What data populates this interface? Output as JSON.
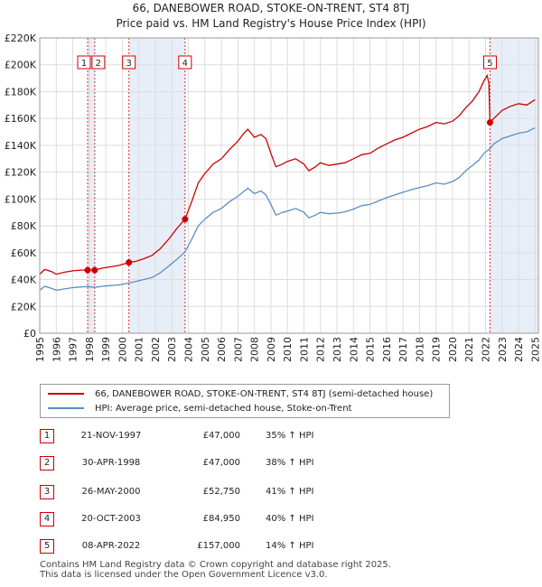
{
  "title_line1": "66, DANEBOWER ROAD, STOKE-ON-TRENT, ST4 8TJ",
  "title_line2": "Price paid vs. HM Land Registry's House Price Index (HPI)",
  "colors": {
    "property": "#cc0000",
    "hpi": "#5b8ec4",
    "grid": "#dddddd",
    "highlight": "#e8eef7"
  },
  "chart_data": {
    "type": "line",
    "x_range": [
      1995,
      2025.2
    ],
    "ylim": [
      0,
      220000
    ],
    "y_ticks": [
      {
        "value": 0,
        "label": "£0"
      },
      {
        "value": 20000,
        "label": "£20K"
      },
      {
        "value": 40000,
        "label": "£40K"
      },
      {
        "value": 60000,
        "label": "£60K"
      },
      {
        "value": 80000,
        "label": "£80K"
      },
      {
        "value": 100000,
        "label": "£100K"
      },
      {
        "value": 120000,
        "label": "£120K"
      },
      {
        "value": 140000,
        "label": "£140K"
      },
      {
        "value": 160000,
        "label": "£160K"
      },
      {
        "value": 180000,
        "label": "£180K"
      },
      {
        "value": 200000,
        "label": "£200K"
      },
      {
        "value": 220000,
        "label": "£220K"
      }
    ],
    "x_ticks": [
      1995,
      1996,
      1997,
      1998,
      1999,
      2000,
      2001,
      2002,
      2003,
      2004,
      2005,
      2006,
      2007,
      2008,
      2009,
      2010,
      2011,
      2012,
      2013,
      2014,
      2015,
      2016,
      2017,
      2018,
      2019,
      2020,
      2021,
      2022,
      2023,
      2024,
      2025
    ],
    "highlight_spans": [
      [
        1997.9,
        1998.33
      ],
      [
        2000.4,
        2003.8
      ],
      [
        2022.27,
        2025.2
      ]
    ],
    "series": [
      {
        "name": "66, DANEBOWER ROAD, STOKE-ON-TRENT, ST4 8TJ (semi-detached house)",
        "color": "#cc0000",
        "points": [
          [
            1995.0,
            44000
          ],
          [
            1995.3,
            47500
          ],
          [
            1995.7,
            46000
          ],
          [
            1996.0,
            44000
          ],
          [
            1996.5,
            45500
          ],
          [
            1997.0,
            46500
          ],
          [
            1997.5,
            47000
          ],
          [
            1997.9,
            47000
          ],
          [
            1998.33,
            47000
          ],
          [
            1998.8,
            48500
          ],
          [
            1999.3,
            49500
          ],
          [
            1999.8,
            50500
          ],
          [
            2000.4,
            52750
          ],
          [
            2000.8,
            53500
          ],
          [
            2001.3,
            55500
          ],
          [
            2001.8,
            58000
          ],
          [
            2002.3,
            63000
          ],
          [
            2002.8,
            70000
          ],
          [
            2003.3,
            78000
          ],
          [
            2003.8,
            84950
          ],
          [
            2004.2,
            98000
          ],
          [
            2004.6,
            112000
          ],
          [
            2005.0,
            119000
          ],
          [
            2005.5,
            126000
          ],
          [
            2006.0,
            130000
          ],
          [
            2006.5,
            137000
          ],
          [
            2007.0,
            143000
          ],
          [
            2007.3,
            148000
          ],
          [
            2007.6,
            152000
          ],
          [
            2008.0,
            146000
          ],
          [
            2008.4,
            148000
          ],
          [
            2008.7,
            145000
          ],
          [
            2009.0,
            134000
          ],
          [
            2009.3,
            124000
          ],
          [
            2009.7,
            126000
          ],
          [
            2010.0,
            128000
          ],
          [
            2010.5,
            130000
          ],
          [
            2011.0,
            126000
          ],
          [
            2011.3,
            121000
          ],
          [
            2011.7,
            124000
          ],
          [
            2012.0,
            127000
          ],
          [
            2012.5,
            125000
          ],
          [
            2013.0,
            126000
          ],
          [
            2013.5,
            127000
          ],
          [
            2014.0,
            130000
          ],
          [
            2014.5,
            133000
          ],
          [
            2015.0,
            134000
          ],
          [
            2015.5,
            138000
          ],
          [
            2016.0,
            141000
          ],
          [
            2016.5,
            144000
          ],
          [
            2017.0,
            146000
          ],
          [
            2017.5,
            149000
          ],
          [
            2018.0,
            152000
          ],
          [
            2018.5,
            154000
          ],
          [
            2019.0,
            157000
          ],
          [
            2019.5,
            156000
          ],
          [
            2020.0,
            158000
          ],
          [
            2020.4,
            162000
          ],
          [
            2020.8,
            168000
          ],
          [
            2021.2,
            173000
          ],
          [
            2021.6,
            180000
          ],
          [
            2021.9,
            188000
          ],
          [
            2022.1,
            192000
          ],
          [
            2022.2,
            186000
          ],
          [
            2022.27,
            157000
          ],
          [
            2022.5,
            160000
          ],
          [
            2023.0,
            166000
          ],
          [
            2023.5,
            169000
          ],
          [
            2024.0,
            171000
          ],
          [
            2024.5,
            170000
          ],
          [
            2025.0,
            174000
          ]
        ]
      },
      {
        "name": "HPI: Average price, semi-detached house, Stoke-on-Trent",
        "color": "#5b8ec4",
        "points": [
          [
            1995.0,
            32000
          ],
          [
            1995.3,
            35000
          ],
          [
            1995.7,
            33500
          ],
          [
            1996.0,
            32000
          ],
          [
            1996.5,
            33000
          ],
          [
            1997.0,
            34000
          ],
          [
            1997.5,
            34500
          ],
          [
            1997.9,
            34800
          ],
          [
            1998.33,
            34200
          ],
          [
            1998.8,
            35000
          ],
          [
            1999.3,
            35500
          ],
          [
            1999.8,
            36000
          ],
          [
            2000.4,
            37400
          ],
          [
            2000.8,
            38500
          ],
          [
            2001.3,
            40000
          ],
          [
            2001.8,
            41500
          ],
          [
            2002.3,
            45000
          ],
          [
            2002.8,
            50000
          ],
          [
            2003.3,
            55000
          ],
          [
            2003.8,
            60700
          ],
          [
            2004.2,
            70000
          ],
          [
            2004.6,
            80000
          ],
          [
            2005.0,
            85000
          ],
          [
            2005.5,
            90000
          ],
          [
            2006.0,
            93000
          ],
          [
            2006.5,
            98000
          ],
          [
            2007.0,
            102000
          ],
          [
            2007.3,
            105000
          ],
          [
            2007.6,
            108000
          ],
          [
            2008.0,
            104000
          ],
          [
            2008.4,
            106000
          ],
          [
            2008.7,
            103000
          ],
          [
            2009.0,
            96000
          ],
          [
            2009.3,
            88000
          ],
          [
            2009.7,
            90000
          ],
          [
            2010.0,
            91000
          ],
          [
            2010.5,
            93000
          ],
          [
            2011.0,
            90000
          ],
          [
            2011.3,
            86000
          ],
          [
            2011.7,
            88000
          ],
          [
            2012.0,
            90000
          ],
          [
            2012.5,
            89000
          ],
          [
            2013.0,
            89500
          ],
          [
            2013.5,
            90500
          ],
          [
            2014.0,
            92500
          ],
          [
            2014.5,
            95000
          ],
          [
            2015.0,
            96000
          ],
          [
            2015.5,
            98500
          ],
          [
            2016.0,
            101000
          ],
          [
            2016.5,
            103000
          ],
          [
            2017.0,
            105000
          ],
          [
            2017.5,
            107000
          ],
          [
            2018.0,
            108500
          ],
          [
            2018.5,
            110000
          ],
          [
            2019.0,
            112000
          ],
          [
            2019.5,
            111000
          ],
          [
            2020.0,
            113000
          ],
          [
            2020.4,
            116000
          ],
          [
            2020.8,
            121000
          ],
          [
            2021.2,
            125000
          ],
          [
            2021.6,
            129000
          ],
          [
            2021.9,
            134000
          ],
          [
            2022.1,
            136000
          ],
          [
            2022.27,
            137500
          ],
          [
            2022.5,
            141000
          ],
          [
            2023.0,
            145000
          ],
          [
            2023.5,
            147000
          ],
          [
            2024.0,
            149000
          ],
          [
            2024.5,
            150000
          ],
          [
            2025.0,
            153000
          ]
        ]
      }
    ],
    "sales": [
      {
        "label": "1",
        "x": 1997.9,
        "price": 47000
      },
      {
        "label": "2",
        "x": 1998.33,
        "price": 47000
      },
      {
        "label": "3",
        "x": 2000.4,
        "price": 52750
      },
      {
        "label": "4",
        "x": 2003.8,
        "price": 84950
      },
      {
        "label": "5",
        "x": 2022.27,
        "price": 157000
      }
    ]
  },
  "legend": {
    "property": "66, DANEBOWER ROAD, STOKE-ON-TRENT, ST4 8TJ (semi-detached house)",
    "hpi": "HPI: Average price, semi-detached house, Stoke-on-Trent"
  },
  "transactions": [
    {
      "num": "1",
      "date": "21-NOV-1997",
      "price": "£47,000",
      "hpi": "35% ↑ HPI"
    },
    {
      "num": "2",
      "date": "30-APR-1998",
      "price": "£47,000",
      "hpi": "38% ↑ HPI"
    },
    {
      "num": "3",
      "date": "26-MAY-2000",
      "price": "£52,750",
      "hpi": "41% ↑ HPI"
    },
    {
      "num": "4",
      "date": "20-OCT-2003",
      "price": "£84,950",
      "hpi": "40% ↑ HPI"
    },
    {
      "num": "5",
      "date": "08-APR-2022",
      "price": "£157,000",
      "hpi": "14% ↑ HPI"
    }
  ],
  "footer_line1": "Contains HM Land Registry data © Crown copyright and database right 2025.",
  "footer_line2": "This data is licensed under the Open Government Licence v3.0."
}
